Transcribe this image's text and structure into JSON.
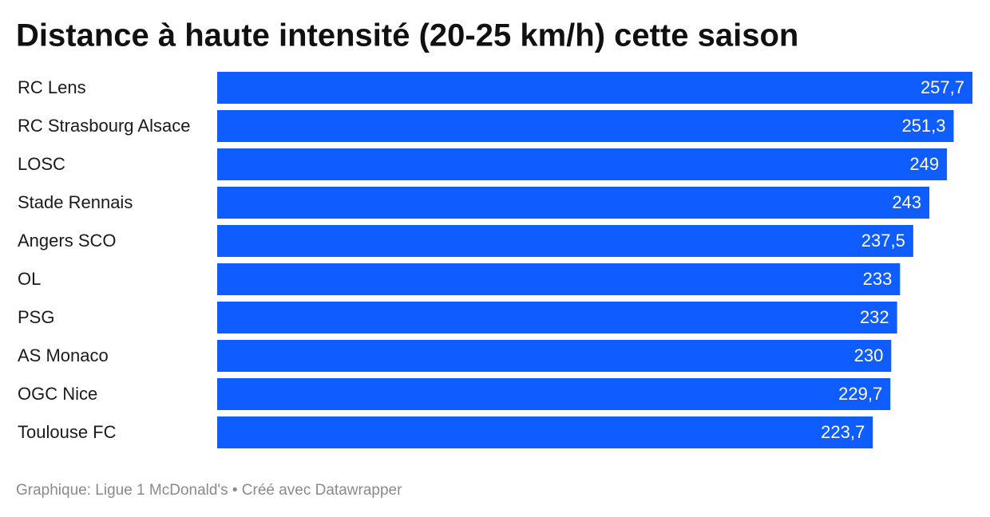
{
  "chart_data": {
    "type": "bar",
    "orientation": "horizontal",
    "title": "Distance à haute intensité (20-25 km/h) cette saison",
    "categories": [
      "RC Lens",
      "RC Strasbourg Alsace",
      "LOSC",
      "Stade Rennais",
      "Angers SCO",
      "OL",
      "PSG",
      "AS Monaco",
      "OGC Nice",
      "Toulouse FC"
    ],
    "values": [
      257.7,
      251.3,
      249,
      243,
      237.5,
      233,
      232,
      230,
      229.7,
      223.7
    ],
    "value_labels": [
      "257,7",
      "251,3",
      "249",
      "243",
      "237,5",
      "233",
      "232",
      "230",
      "229,7",
      "223,7"
    ],
    "color": "#0f5cff",
    "xlim": [
      0,
      257.7
    ],
    "source": "Graphique: Ligue 1 McDonald's • Créé avec Datawrapper"
  }
}
